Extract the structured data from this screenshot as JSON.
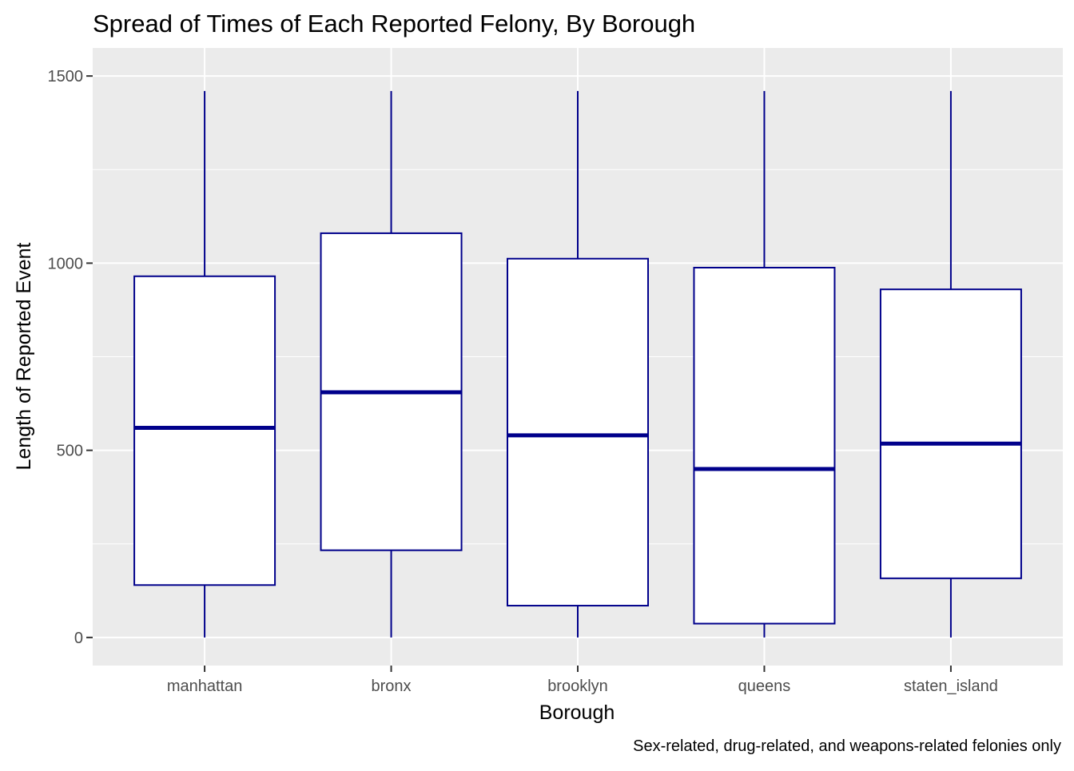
{
  "chart_data": {
    "type": "boxplot",
    "title": "Spread of Times of Each Reported Felony, By Borough",
    "xlabel": "Borough",
    "ylabel": "Length of Reported Event",
    "caption": "Sex-related, drug-related, and weapons-related felonies only",
    "categories": [
      "manhattan",
      "bronx",
      "brooklyn",
      "queens",
      "staten_island"
    ],
    "boxes": [
      {
        "category": "manhattan",
        "min": 0,
        "q1": 140,
        "median": 560,
        "q3": 965,
        "max": 1460
      },
      {
        "category": "bronx",
        "min": 0,
        "q1": 233,
        "median": 655,
        "q3": 1080,
        "max": 1460
      },
      {
        "category": "brooklyn",
        "min": 0,
        "q1": 85,
        "median": 540,
        "q3": 1012,
        "max": 1460
      },
      {
        "category": "queens",
        "min": 0,
        "q1": 37,
        "median": 450,
        "q3": 988,
        "max": 1460
      },
      {
        "category": "staten_island",
        "min": 0,
        "q1": 158,
        "median": 518,
        "q3": 930,
        "max": 1460
      }
    ],
    "yticks": [
      0,
      500,
      1000,
      1500
    ],
    "ylim": [
      -75,
      1575
    ],
    "grid": true,
    "colors": {
      "panel": "#ebebeb",
      "grid": "#ffffff",
      "box_stroke": "#00008b",
      "box_fill": "#ffffff",
      "text": "#000000",
      "tick_text": "#4d4d4d"
    }
  }
}
